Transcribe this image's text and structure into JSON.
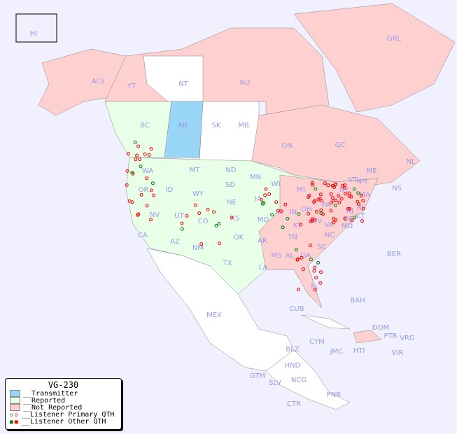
{
  "map": {
    "background": "#f0f0ff",
    "colors": {
      "transmitter": "#99d6f8",
      "reported": "#e8ffe8",
      "not_reported": "#ffd0d0",
      "unlisted": "#ffffff",
      "primary_red": "#ff0000",
      "primary_green": "#008000"
    },
    "labels": [
      "HI",
      "ALS",
      "YT",
      "NT",
      "NU",
      "GRL",
      "BC",
      "AB",
      "SK",
      "MB",
      "ON",
      "QC",
      "NL",
      "NS",
      "WA",
      "MT",
      "ND",
      "MN",
      "OR",
      "ID",
      "WY",
      "SD",
      "WI",
      "MI",
      "NV",
      "UT",
      "CO",
      "NE",
      "IA",
      "IL",
      "IN",
      "OH",
      "PA",
      "NY",
      "CA",
      "AZ",
      "NM",
      "KS",
      "MO",
      "KY",
      "WV",
      "VA",
      "MD",
      "NJ",
      "DE",
      "CT",
      "RI",
      "MA",
      "VT",
      "NH",
      "ME",
      "OK",
      "AR",
      "TN",
      "NC",
      "SC",
      "TX",
      "LA",
      "MS",
      "AL",
      "GA",
      "FL",
      "MEX",
      "CUB",
      "BAH",
      "DOM",
      "PTR",
      "VRG",
      "CYM",
      "JMC",
      "HTI",
      "VIR",
      "BLZ",
      "HND",
      "GTM",
      "SLV",
      "NCG",
      "CTR",
      "PNR",
      "BER"
    ]
  },
  "legend": {
    "title": "VG-230",
    "items": [
      {
        "label": "__Transmitter",
        "color": "#99d6f8"
      },
      {
        "label": "__Reported",
        "color": "#e8ffe8"
      },
      {
        "label": "__Not Reported",
        "color": "#ffd0d0"
      },
      {
        "label": "__Listener Primary QTH",
        "marker": "circle"
      },
      {
        "label": "__Listener Other QTH",
        "marker": "square"
      }
    ]
  }
}
